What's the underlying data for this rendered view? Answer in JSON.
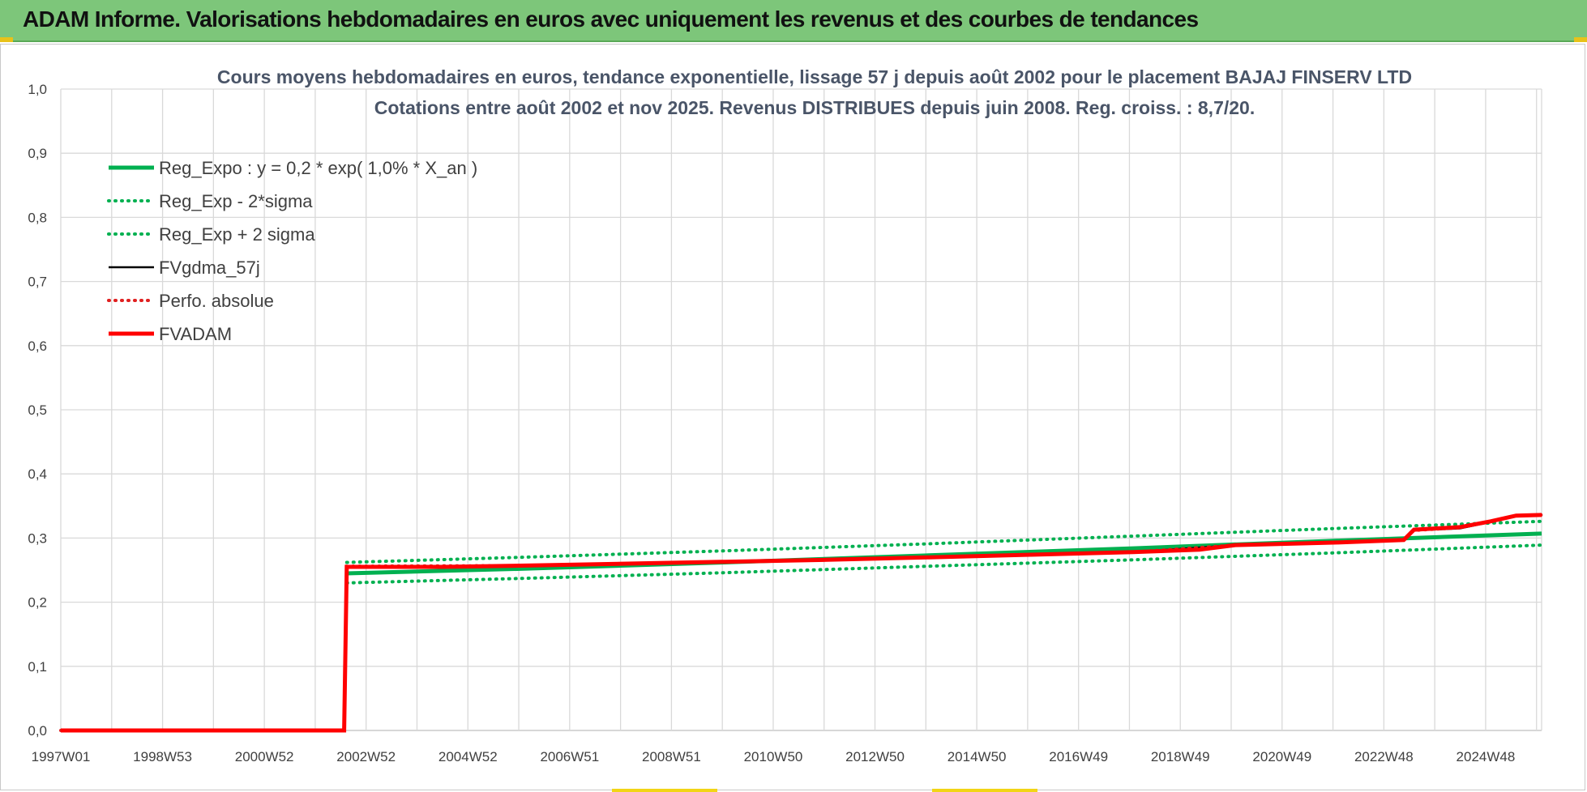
{
  "header": {
    "title": "ADAM Informe. Valorisations hebdomadaires en euros avec uniquement les revenus et des courbes de tendances"
  },
  "colors": {
    "header_bg": "#7dc67a",
    "green_series": "#00b050",
    "red_series": "#ff0000",
    "black_series": "#000000",
    "dotted_red": "#e02020"
  },
  "chart_data": {
    "type": "line",
    "title_lines": [
      "Cours moyens hebdomadaires en euros, tendance exponentielle, lissage 57 j depuis août 2002 pour le placement BAJAJ FINSERV LTD",
      "Cotations entre août 2002 et nov 2025.  Revenus DISTRIBUES depuis juin 2008.  Reg. croiss. : 8,7/20."
    ],
    "ylim": [
      0,
      1
    ],
    "y_ticks": [
      "0,0",
      "0,1",
      "0,2",
      "0,3",
      "0,4",
      "0,5",
      "0,6",
      "0,7",
      "0,8",
      "0,9",
      "1,0"
    ],
    "x_ticks": [
      "1997W01",
      "1998W53",
      "2000W52",
      "2002W52",
      "2004W52",
      "2006W51",
      "2008W51",
      "2010W50",
      "2012W50",
      "2014W50",
      "2016W49",
      "2018W49",
      "2020W49",
      "2022W48",
      "2024W48"
    ],
    "xlim": [
      1997.0,
      2026.0
    ],
    "grid": true,
    "legend_position": "top-left",
    "series": [
      {
        "name": "Reg_Expo : y = 0,2 * exp( 1,0% *  X_an )",
        "style": "solid-thick",
        "color": "#00b050",
        "points": [
          [
            2002.6,
            0.245
          ],
          [
            2006.0,
            0.252
          ],
          [
            2010.0,
            0.262
          ],
          [
            2014.0,
            0.273
          ],
          [
            2018.0,
            0.284
          ],
          [
            2022.0,
            0.296
          ],
          [
            2026.0,
            0.307
          ]
        ]
      },
      {
        "name": "Reg_Exp - 2*sigma",
        "style": "dotted",
        "color": "#00b050",
        "points": [
          [
            2002.6,
            0.23
          ],
          [
            2006.0,
            0.237
          ],
          [
            2010.0,
            0.246
          ],
          [
            2014.0,
            0.256
          ],
          [
            2018.0,
            0.266
          ],
          [
            2022.0,
            0.277
          ],
          [
            2026.0,
            0.289
          ]
        ]
      },
      {
        "name": "Reg_Exp + 2 sigma",
        "style": "dotted",
        "color": "#00b050",
        "points": [
          [
            2002.6,
            0.262
          ],
          [
            2006.0,
            0.27
          ],
          [
            2010.0,
            0.28
          ],
          [
            2014.0,
            0.291
          ],
          [
            2018.0,
            0.303
          ],
          [
            2022.0,
            0.315
          ],
          [
            2026.0,
            0.326
          ]
        ]
      },
      {
        "name": "FVgdma_57j",
        "style": "solid",
        "color": "#000000",
        "points": [
          [
            1997.0,
            0.0
          ],
          [
            2002.55,
            0.0
          ],
          [
            2002.6,
            0.255
          ],
          [
            2004.5,
            0.255
          ],
          [
            2006.0,
            0.257
          ],
          [
            2008.0,
            0.259
          ],
          [
            2010.0,
            0.263
          ],
          [
            2012.0,
            0.266
          ],
          [
            2014.0,
            0.27
          ],
          [
            2016.0,
            0.274
          ],
          [
            2018.0,
            0.278
          ],
          [
            2020.0,
            0.289
          ],
          [
            2022.0,
            0.293
          ],
          [
            2023.3,
            0.297
          ],
          [
            2023.5,
            0.312
          ],
          [
            2024.4,
            0.315
          ],
          [
            2025.0,
            0.325
          ],
          [
            2025.5,
            0.334
          ],
          [
            2026.0,
            0.335
          ]
        ]
      },
      {
        "name": "Perfo. absolue",
        "style": "dotted",
        "color": "#e02020",
        "points": [
          [
            1997.0,
            0.0
          ],
          [
            2002.55,
            0.0
          ],
          [
            2002.6,
            0.256
          ],
          [
            2006.0,
            0.257
          ],
          [
            2010.0,
            0.263
          ],
          [
            2014.0,
            0.27
          ],
          [
            2018.0,
            0.278
          ],
          [
            2020.0,
            0.289
          ],
          [
            2022.0,
            0.293
          ],
          [
            2023.3,
            0.297
          ],
          [
            2023.5,
            0.312
          ],
          [
            2024.4,
            0.316
          ],
          [
            2025.0,
            0.326
          ],
          [
            2025.5,
            0.335
          ],
          [
            2026.0,
            0.336
          ]
        ]
      },
      {
        "name": "FVADAM",
        "style": "solid-thick",
        "color": "#ff0000",
        "points": [
          [
            1997.0,
            0.0
          ],
          [
            2002.55,
            0.0
          ],
          [
            2002.6,
            0.255
          ],
          [
            2004.5,
            0.255
          ],
          [
            2006.0,
            0.257
          ],
          [
            2008.0,
            0.26
          ],
          [
            2010.0,
            0.263
          ],
          [
            2012.0,
            0.266
          ],
          [
            2014.0,
            0.27
          ],
          [
            2016.0,
            0.274
          ],
          [
            2018.0,
            0.278
          ],
          [
            2019.3,
            0.282
          ],
          [
            2020.0,
            0.289
          ],
          [
            2022.0,
            0.293
          ],
          [
            2023.3,
            0.297
          ],
          [
            2023.5,
            0.313
          ],
          [
            2024.4,
            0.317
          ],
          [
            2025.0,
            0.326
          ],
          [
            2025.5,
            0.335
          ],
          [
            2026.0,
            0.336
          ]
        ]
      }
    ]
  }
}
